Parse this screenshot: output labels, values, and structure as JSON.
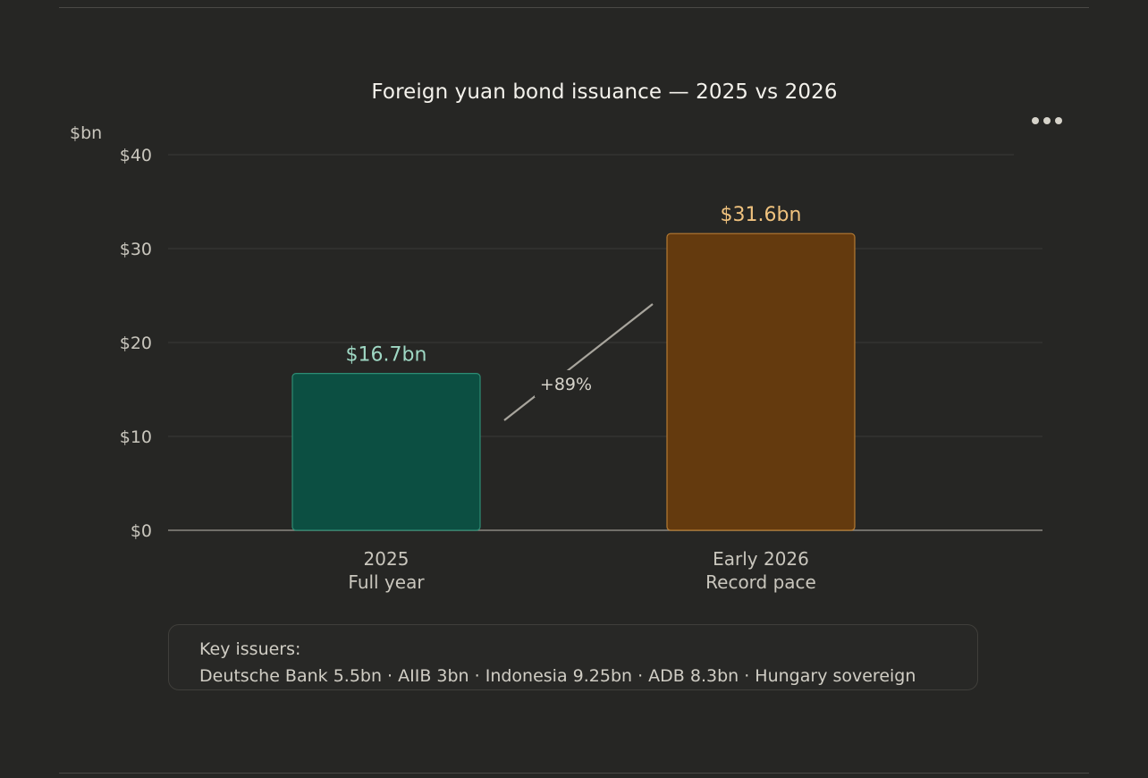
{
  "chart_data": {
    "type": "bar",
    "title": "Foreign yuan bond issuance — 2025 vs 2026",
    "ylabel": "$bn",
    "ylim": [
      0,
      40
    ],
    "yticks": [
      0,
      10,
      20,
      30,
      40
    ],
    "ytick_labels": [
      "$0",
      "$10",
      "$20",
      "$30",
      "$40"
    ],
    "grid": true,
    "categories": [
      {
        "line1": "2025",
        "line2": "Full year"
      },
      {
        "line1": "Early 2026",
        "line2": "Record pace"
      }
    ],
    "values": [
      16.7,
      31.6
    ],
    "data_labels": [
      "$16.7bn",
      "$31.6bn"
    ],
    "colors": {
      "bars_fill": [
        "#0c4f42",
        "#643a0e"
      ],
      "bars_stroke": [
        "#2e8c74",
        "#b57b33"
      ],
      "labels": [
        "#9fd8c4",
        "#f0c27e"
      ],
      "grid": "#3b3a37",
      "baseline": "#8a8780"
    },
    "annotation": {
      "label": "+89%"
    }
  },
  "menu": {
    "icon": "more-horizontal-icon"
  },
  "footer_note": {
    "heading": "Key issuers:",
    "text": "Deutsche Bank 5.5bn · AIIB 3bn · Indonesia 9.25bn · ADB 8.3bn · Hungary sovereign"
  }
}
